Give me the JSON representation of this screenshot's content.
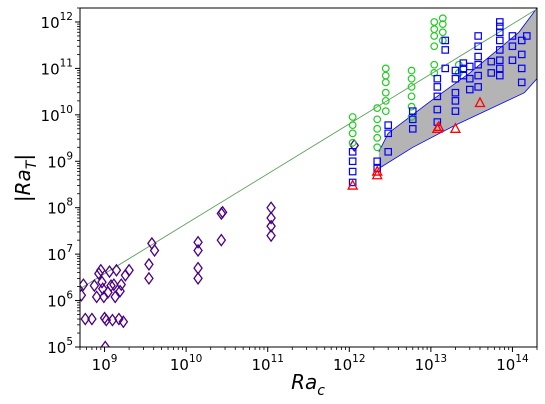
{
  "chart_data": {
    "type": "scatter",
    "title": "",
    "xlabel": "Ra",
    "xlabel_sub": "c",
    "ylabel": "|Ra",
    "ylabel_sub": "T",
    "ylabel_close": "|",
    "xscale": "log",
    "yscale": "log",
    "xlim": [
      500000000.0,
      200000000000000.0
    ],
    "ylim": [
      100000.0,
      2000000000000.0
    ],
    "x_ticks": [
      {
        "value": 1000000000.0,
        "base": "10",
        "exp": "9"
      },
      {
        "value": 10000000000.0,
        "base": "10",
        "exp": "10"
      },
      {
        "value": 100000000000.0,
        "base": "10",
        "exp": "11"
      },
      {
        "value": 1000000000000.0,
        "base": "10",
        "exp": "12"
      },
      {
        "value": 10000000000000.0,
        "base": "10",
        "exp": "13"
      },
      {
        "value": 100000000000000.0,
        "base": "10",
        "exp": "14"
      }
    ],
    "y_ticks": [
      {
        "value": 100000.0,
        "base": "10",
        "exp": "5"
      },
      {
        "value": 1000000.0,
        "base": "10",
        "exp": "6"
      },
      {
        "value": 10000000.0,
        "base": "10",
        "exp": "7"
      },
      {
        "value": 100000000.0,
        "base": "10",
        "exp": "8"
      },
      {
        "value": 1000000000.0,
        "base": "10",
        "exp": "9"
      },
      {
        "value": 10000000000.0,
        "base": "10",
        "exp": "10"
      },
      {
        "value": 100000000000.0,
        "base": "10",
        "exp": "11"
      },
      {
        "value": 1000000000000.0,
        "base": "10",
        "exp": "12"
      }
    ],
    "grid": false,
    "legend": "none",
    "colors": {
      "diamond": "#4b0082",
      "circle": "#22cc22",
      "square": "#0000ff",
      "triangle": "#ff0000",
      "fit_line": "#5aa05a",
      "band_fill": "#b4b4b4",
      "band_edge": "#0000ff"
    },
    "fit_line": {
      "x": [
        500000000.0,
        200000000000000.0
      ],
      "y": [
        1800000.0,
        1900000000000.0
      ]
    },
    "band": {
      "upper": [
        [
          2300000000000.0,
          1600000000.0
        ],
        [
          3000000000000.0,
          4000000000.0
        ],
        [
          10000000000000.0,
          20000000000.0
        ],
        [
          30000000000000.0,
          80000000000.0
        ],
        [
          120000000000000.0,
          600000000000.0
        ],
        [
          200000000000000.0,
          2000000000000.0
        ]
      ],
      "lower": [
        [
          2300000000000.0,
          700000000.0
        ],
        [
          6000000000000.0,
          2000000000.0
        ],
        [
          20000000000000.0,
          6000000000.0
        ],
        [
          140000000000000.0,
          30000000000.0
        ],
        [
          200000000000000.0,
          60000000000.0
        ]
      ]
    },
    "series": [
      {
        "marker": "diamond",
        "points": [
          [
            520000000.0,
            1300000.0
          ],
          [
            550000000.0,
            2200000.0
          ],
          [
            580000000.0,
            400000.0
          ],
          [
            700000000.0,
            400000.0
          ],
          [
            750000000.0,
            2100000.0
          ],
          [
            800000000.0,
            1200000.0
          ],
          [
            850000000.0,
            3800000.0
          ],
          [
            900000000.0,
            4500000.0
          ],
          [
            930000000.0,
            2500000.0
          ],
          [
            950000000.0,
            1800000.0
          ],
          [
            980000000.0,
            1200000.0
          ],
          [
            1000000000.0,
            420000.0
          ],
          [
            1020000000.0,
            100000.0
          ],
          [
            1050000000.0,
            380000.0
          ],
          [
            1100000000.0,
            1500000.0
          ],
          [
            1150000000.0,
            4200000.0
          ],
          [
            1200000000.0,
            2100000.0
          ],
          [
            1250000000.0,
            380000.0
          ],
          [
            1300000000.0,
            2200000.0
          ],
          [
            1350000000.0,
            1200000.0
          ],
          [
            1400000000.0,
            4500000.0
          ],
          [
            1500000000.0,
            400000.0
          ],
          [
            1550000000.0,
            1600000.0
          ],
          [
            1600000000.0,
            2200000.0
          ],
          [
            1700000000.0,
            350000.0
          ],
          [
            1800000000.0,
            3500000.0
          ],
          [
            2000000000.0,
            4500000.0
          ],
          [
            3500000000.0,
            6000000.0
          ],
          [
            3500000000.0,
            3000000.0
          ],
          [
            3800000000.0,
            17000000.0
          ],
          [
            4100000000.0,
            12000000.0
          ],
          [
            14000000000.0,
            18000000.0
          ],
          [
            14000000000.0,
            12000000.0
          ],
          [
            14000000000.0,
            5000000.0
          ],
          [
            14000000000.0,
            3000000.0
          ],
          [
            27000000000.0,
            75000000.0
          ],
          [
            28000000000.0,
            80000000.0
          ],
          [
            27000000000.0,
            20000000.0
          ],
          [
            110000000000.0,
            100000000.0
          ],
          [
            110000000000.0,
            60000000.0
          ],
          [
            110000000000.0,
            40000000.0
          ],
          [
            110000000000.0,
            25000000.0
          ],
          [
            1150000000000.0,
            2200000000.0
          ]
        ]
      },
      {
        "marker": "circle",
        "points": [
          [
            1100000000000.0,
            9000000000.0
          ],
          [
            1100000000000.0,
            6000000000.0
          ],
          [
            1100000000000.0,
            4000000000.0
          ],
          [
            1100000000000.0,
            2500000000.0
          ],
          [
            2200000000000.0,
            14000000000.0
          ],
          [
            2200000000000.0,
            8000000000.0
          ],
          [
            2200000000000.0,
            5000000000.0
          ],
          [
            2200000000000.0,
            3200000000.0
          ],
          [
            2200000000000.0,
            2000000000.0
          ],
          [
            2800000000000.0,
            100000000000.0
          ],
          [
            2800000000000.0,
            70000000000.0
          ],
          [
            2800000000000.0,
            50000000000.0
          ],
          [
            2800000000000.0,
            30000000000.0
          ],
          [
            2800000000000.0,
            20000000000.0
          ],
          [
            2800000000000.0,
            12000000000.0
          ],
          [
            5800000000000.0,
            90000000000.0
          ],
          [
            5800000000000.0,
            60000000000.0
          ],
          [
            5800000000000.0,
            40000000000.0
          ],
          [
            5800000000000.0,
            25000000000.0
          ],
          [
            5800000000000.0,
            15000000000.0
          ],
          [
            5800000000000.0,
            9000000000.0
          ],
          [
            11000000000000.0,
            1000000000000.0
          ],
          [
            11000000000000.0,
            700000000000.0
          ],
          [
            11000000000000.0,
            500000000000.0
          ],
          [
            11000000000000.0,
            300000000000.0
          ],
          [
            11000000000000.0,
            120000000000.0
          ],
          [
            11000000000000.0,
            80000000000.0
          ],
          [
            14000000000000.0,
            1200000000000.0
          ],
          [
            14000000000000.0,
            900000000000.0
          ],
          [
            14000000000000.0,
            600000000000.0
          ],
          [
            14000000000000.0,
            400000000000.0
          ],
          [
            22000000000000.0,
            120000000000.0
          ],
          [
            22000000000000.0,
            80000000000.0
          ]
        ]
      },
      {
        "marker": "square",
        "points": [
          [
            1100000000000.0,
            1600000000.0
          ],
          [
            1100000000000.0,
            1000000000.0
          ],
          [
            1100000000000.0,
            600000000.0
          ],
          [
            1100000000000.0,
            350000000.0
          ],
          [
            2200000000000.0,
            1000000000.0
          ],
          [
            2200000000000.0,
            700000000.0
          ],
          [
            3000000000000.0,
            6000000000.0
          ],
          [
            3000000000000.0,
            4000000000.0
          ],
          [
            3000000000000.0,
            1600000000.0
          ],
          [
            6000000000000.0,
            12000000000.0
          ],
          [
            6000000000000.0,
            8000000000.0
          ],
          [
            6000000000000.0,
            5000000000.0
          ],
          [
            12000000000000.0,
            60000000000.0
          ],
          [
            12000000000000.0,
            40000000000.0
          ],
          [
            12000000000000.0,
            25000000000.0
          ],
          [
            12000000000000.0,
            13000000000.0
          ],
          [
            12000000000000.0,
            7000000000.0
          ],
          [
            15000000000000.0,
            400000000000.0
          ],
          [
            15000000000000.0,
            250000000000.0
          ],
          [
            15000000000000.0,
            100000000000.0
          ],
          [
            20000000000000.0,
            90000000000.0
          ],
          [
            20000000000000.0,
            60000000000.0
          ],
          [
            20000000000000.0,
            30000000000.0
          ],
          [
            20000000000000.0,
            20000000000.0
          ],
          [
            20000000000000.0,
            12000000000.0
          ],
          [
            25000000000000.0,
            130000000000.0
          ],
          [
            25000000000000.0,
            100000000000.0
          ],
          [
            25000000000000.0,
            70000000000.0
          ],
          [
            30000000000000.0,
            110000000000.0
          ],
          [
            30000000000000.0,
            60000000000.0
          ],
          [
            30000000000000.0,
            35000000000.0
          ],
          [
            38000000000000.0,
            500000000000.0
          ],
          [
            38000000000000.0,
            300000000000.0
          ],
          [
            38000000000000.0,
            180000000000.0
          ],
          [
            38000000000000.0,
            120000000000.0
          ],
          [
            38000000000000.0,
            70000000000.0
          ],
          [
            38000000000000.0,
            40000000000.0
          ],
          [
            55000000000000.0,
            140000000000.0
          ],
          [
            55000000000000.0,
            80000000000.0
          ],
          [
            70000000000000.0,
            1000000000000.0
          ],
          [
            70000000000000.0,
            800000000000.0
          ],
          [
            70000000000000.0,
            600000000000.0
          ],
          [
            70000000000000.0,
            400000000000.0
          ],
          [
            70000000000000.0,
            250000000000.0
          ],
          [
            70000000000000.0,
            150000000000.0
          ],
          [
            70000000000000.0,
            100000000000.0
          ],
          [
            70000000000000.0,
            70000000000.0
          ],
          [
            100000000000000.0,
            500000000000.0
          ],
          [
            100000000000000.0,
            300000000000.0
          ],
          [
            100000000000000.0,
            150000000000.0
          ],
          [
            130000000000000.0,
            400000000000.0
          ],
          [
            130000000000000.0,
            200000000000.0
          ],
          [
            130000000000000.0,
            100000000000.0
          ],
          [
            130000000000000.0,
            50000000000.0
          ],
          [
            150000000000000.0,
            500000000000.0
          ]
        ]
      },
      {
        "marker": "triangle",
        "points": [
          [
            1100000000000.0,
            300000000.0
          ],
          [
            2200000000000.0,
            600000000.0
          ],
          [
            2200000000000.0,
            500000000.0
          ],
          [
            12000000000000.0,
            5000000000.0
          ],
          [
            12500000000000.0,
            5500000000.0
          ],
          [
            20000000000000.0,
            5000000000.0
          ],
          [
            40000000000000.0,
            18000000000.0
          ]
        ]
      }
    ]
  }
}
